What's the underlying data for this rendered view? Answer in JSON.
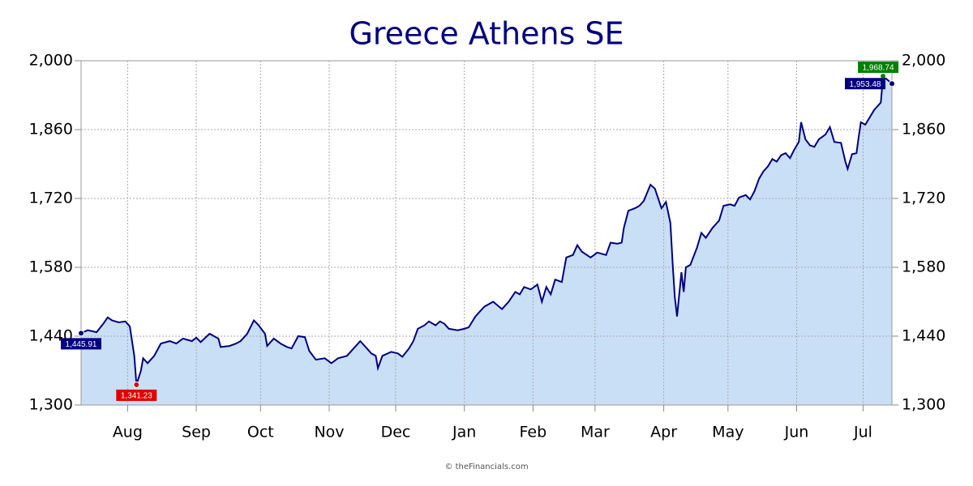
{
  "chart_data": {
    "type": "area",
    "title": "Greece Athens SE",
    "source": "© theFinancials.com",
    "color": "#000080",
    "fill": "#c9dff6",
    "grid": true,
    "xlim": [
      0,
      366
    ],
    "ylim": [
      1300,
      2000
    ],
    "xticks": [
      {
        "value": 21,
        "label": "Aug"
      },
      {
        "value": 52,
        "label": "Sep"
      },
      {
        "value": 81,
        "label": "Oct"
      },
      {
        "value": 112,
        "label": "Nov"
      },
      {
        "value": 142,
        "label": "Dec"
      },
      {
        "value": 173,
        "label": "Jan"
      },
      {
        "value": 204,
        "label": "Feb"
      },
      {
        "value": 232,
        "label": "Mar"
      },
      {
        "value": 263,
        "label": "Apr"
      },
      {
        "value": 292,
        "label": "May"
      },
      {
        "value": 323,
        "label": "Jun"
      },
      {
        "value": 353,
        "label": "Jul"
      }
    ],
    "yticks": [
      {
        "value": 1300,
        "label": "1,300"
      },
      {
        "value": 1440,
        "label": "1,440"
      },
      {
        "value": 1580,
        "label": "1,580"
      },
      {
        "value": 1720,
        "label": "1,720"
      },
      {
        "value": 1860,
        "label": "1,860"
      },
      {
        "value": 2000,
        "label": "2,000"
      }
    ],
    "x": [
      0,
      3,
      7,
      10,
      12,
      14,
      17,
      20,
      22,
      24,
      25,
      27,
      28,
      30,
      33,
      36,
      40,
      43,
      46,
      50,
      52,
      54,
      58,
      62,
      63,
      67,
      70,
      72,
      75,
      78,
      80,
      83,
      84,
      87,
      90,
      93,
      95,
      98,
      101,
      103,
      106,
      110,
      113,
      116,
      120,
      123,
      126,
      129,
      131,
      133,
      134,
      136,
      140,
      143,
      145,
      148,
      150,
      152,
      155,
      157,
      160,
      162,
      164,
      166,
      170,
      173,
      175,
      178,
      182,
      186,
      190,
      193,
      196,
      198,
      200,
      203,
      206,
      208,
      210,
      212,
      214,
      217,
      219,
      222,
      224,
      226,
      230,
      233,
      237,
      239,
      242,
      244,
      245,
      247,
      250,
      252,
      254,
      257,
      259,
      262,
      264,
      266,
      267,
      268,
      269,
      271,
      272,
      273,
      275,
      278,
      280,
      282,
      285,
      288,
      290,
      293,
      295,
      297,
      300,
      302,
      304,
      306,
      308,
      310,
      312,
      314,
      316,
      318,
      320,
      322,
      324,
      325,
      327,
      329,
      331,
      333,
      336,
      338,
      340,
      343,
      345,
      346,
      348,
      350,
      351,
      352,
      354,
      356,
      358,
      361,
      362,
      366
    ],
    "values": [
      1445.91,
      1452,
      1448,
      1465,
      1478,
      1472,
      1468,
      1470,
      1460,
      1400,
      1341.23,
      1370,
      1395,
      1385,
      1400,
      1425,
      1430,
      1425,
      1435,
      1430,
      1437,
      1428,
      1445,
      1435,
      1418,
      1420,
      1425,
      1430,
      1445,
      1472,
      1463,
      1445,
      1420,
      1435,
      1425,
      1418,
      1415,
      1440,
      1438,
      1410,
      1392,
      1395,
      1385,
      1395,
      1400,
      1415,
      1430,
      1415,
      1405,
      1400,
      1375,
      1400,
      1408,
      1405,
      1398,
      1415,
      1430,
      1455,
      1462,
      1470,
      1462,
      1470,
      1465,
      1455,
      1452,
      1455,
      1458,
      1480,
      1500,
      1510,
      1495,
      1510,
      1530,
      1525,
      1540,
      1535,
      1545,
      1510,
      1540,
      1525,
      1555,
      1550,
      1600,
      1605,
      1625,
      1612,
      1600,
      1610,
      1605,
      1630,
      1628,
      1630,
      1660,
      1695,
      1700,
      1705,
      1715,
      1748,
      1740,
      1700,
      1713,
      1670,
      1590,
      1520,
      1480,
      1570,
      1530,
      1580,
      1585,
      1620,
      1650,
      1640,
      1660,
      1675,
      1705,
      1708,
      1705,
      1722,
      1727,
      1718,
      1735,
      1760,
      1775,
      1785,
      1800,
      1795,
      1808,
      1812,
      1802,
      1820,
      1835,
      1875,
      1840,
      1828,
      1825,
      1840,
      1850,
      1865,
      1835,
      1833,
      1795,
      1780,
      1810,
      1812,
      1845,
      1875,
      1870,
      1885,
      1900,
      1915,
      1968.74,
      1953.48
    ],
    "value_labels": [
      "1,445.91",
      null,
      null,
      null,
      null,
      null,
      null,
      null,
      null,
      null,
      "1,341.23",
      null,
      null,
      null,
      null,
      null,
      null,
      null,
      null,
      null,
      null,
      null,
      null,
      null,
      null,
      null,
      null,
      null,
      null,
      null,
      null,
      null,
      null,
      null,
      null,
      null,
      null,
      null,
      null,
      null,
      null,
      null,
      null,
      null,
      null,
      null,
      null,
      null,
      null,
      null,
      null,
      null,
      null,
      null,
      null,
      null,
      null,
      null,
      null,
      null,
      null,
      null,
      null,
      null,
      null,
      null,
      null,
      null,
      null,
      null,
      null,
      null,
      null,
      null,
      null,
      null,
      null,
      null,
      null,
      null,
      null,
      null,
      null,
      null,
      null,
      null,
      null,
      null,
      null,
      null,
      null,
      null,
      null,
      null,
      null,
      null,
      null,
      null,
      null,
      null,
      null,
      null,
      null,
      null,
      null,
      null,
      null,
      null,
      null,
      null,
      null,
      null,
      null,
      null,
      null,
      null,
      null,
      null,
      null,
      null,
      null,
      null,
      null,
      null,
      null,
      null,
      null,
      null,
      null,
      null,
      null,
      null,
      null,
      null,
      null,
      null,
      null,
      null,
      null,
      null,
      null,
      null,
      null,
      null,
      null,
      null,
      null,
      null,
      null,
      null,
      "1,968.74",
      "1,953.48"
    ],
    "value_label_colors": [
      "#000080",
      null,
      null,
      null,
      null,
      null,
      null,
      null,
      null,
      null,
      "#e00000",
      null,
      null,
      null,
      null,
      null,
      null,
      null,
      null,
      null,
      null,
      null,
      null,
      null,
      null,
      null,
      null,
      null,
      null,
      null,
      null,
      null,
      null,
      null,
      null,
      null,
      null,
      null,
      null,
      null,
      null,
      null,
      null,
      null,
      null,
      null,
      null,
      null,
      null,
      null,
      null,
      null,
      null,
      null,
      null,
      null,
      null,
      null,
      null,
      null,
      null,
      null,
      null,
      null,
      null,
      null,
      null,
      null,
      null,
      null,
      null,
      null,
      null,
      null,
      null,
      null,
      null,
      null,
      null,
      null,
      null,
      null,
      null,
      null,
      null,
      null,
      null,
      null,
      null,
      null,
      null,
      null,
      null,
      null,
      null,
      null,
      null,
      null,
      null,
      null,
      null,
      null,
      null,
      null,
      null,
      null,
      null,
      null,
      null,
      null,
      null,
      null,
      null,
      null,
      null,
      null,
      null,
      null,
      null,
      null,
      null,
      null,
      null,
      null,
      null,
      null,
      null,
      null,
      null,
      null,
      null,
      null,
      null,
      null,
      null,
      null,
      null,
      null,
      null,
      null,
      null,
      null,
      null,
      null,
      null,
      null,
      null,
      null,
      null,
      null,
      "#008000",
      "#000080"
    ]
  }
}
